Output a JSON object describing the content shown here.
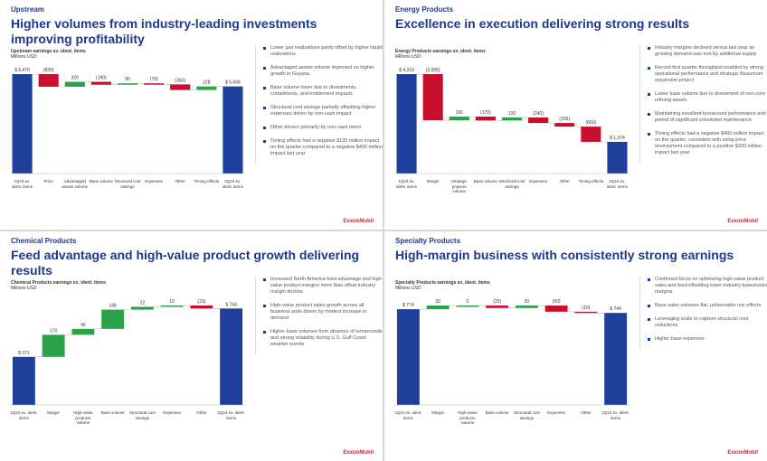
{
  "footer": "ExxonMobil",
  "chart_data": [
    {
      "type": "waterfall",
      "section": "Upstream",
      "title": "Higher volumes from industry-leading investments improving profitability",
      "chart_title": "Upstream earnings ex. ident. items",
      "unit": "Millions USD",
      "categories": [
        "1Q24 ex. ident. items",
        "Price",
        "Advantaged assets volume",
        "Base volume",
        "Structural cost savings",
        "Expenses",
        "Other",
        "Timing effects",
        "2Q24 ex. ident. items"
      ],
      "values": [
        6470,
        -820,
        320,
        -190,
        90,
        -70,
        -360,
        228,
        5668
      ],
      "value_labels": [
        "$ 6,470",
        "(820)",
        "320",
        "(190)",
        "90",
        "(70)",
        "(360)",
        "228",
        "$ 5,668"
      ],
      "bullets": [
        "Lower gas realizations partly offset by higher liquids realizations",
        "Advantaged assets volume improved on higher growth in Guyana",
        "Base volume lower due to divestments, curtailments, and entitlement impacts",
        "Structural cost savings partially offsetting higher expenses driven by non-cash impact",
        "Other drivers primarily by non-cash items",
        "Timing effects had a negative $120 million impact on the quarter compared to a negative $490 million impact last year"
      ]
    },
    {
      "type": "waterfall",
      "section": "Energy Products",
      "title": "Excellence in execution delivering strong results",
      "chart_title": "Energy Products earnings ex. ident. items",
      "unit": "Millions USD",
      "categories": [
        "1Q24 ex. ident. items",
        "Margin",
        "Strategic projects volume",
        "Base volume",
        "Structural cost savings",
        "Expenses",
        "Other",
        "Timing effects",
        "2Q24 ex. ident. items"
      ],
      "values": [
        4310,
        -2000,
        160,
        -170,
        130,
        -240,
        -156,
        -660,
        1374
      ],
      "value_labels": [
        "$ 4,310",
        "(2,000)",
        "160",
        "(170)",
        "130",
        "(240)",
        "(156)",
        "(660)",
        "$ 1,374"
      ],
      "bullets": [
        "Industry margins declined versus last year as growing demand was met by additional supply",
        "Record first quarter throughput enabled by strong operational performance and strategic Beaumont expansion project",
        "Lower base volume due to divestment of non-core refining assets",
        "Maintaining excellent turnaround performance and period of significant scheduled maintenance",
        "Timing effects had a negative $460 million impact on the quarter, consistent with rising price environment compared to a positive $200 million impact last year"
      ]
    },
    {
      "type": "waterfall",
      "section": "Chemical Products",
      "title": "Feed advantage and high-value product growth delivering results",
      "chart_title": "Chemical Products earnings ex. ident. items",
      "unit": "Millions USD",
      "categories": [
        "1Q24 ex. ident. items",
        "Margin",
        "High-value products volume",
        "Base volume",
        "Structural cost savings",
        "Expenses",
        "Other",
        "2Q24 ex. ident. items"
      ],
      "values": [
        371,
        170,
        46,
        148,
        22,
        10,
        -23,
        744
      ],
      "value_labels": [
        "$ 371",
        "170",
        "46",
        "148",
        "22",
        "10",
        "(23)",
        "$ 744"
      ],
      "bullets": [
        "Increased North America feed advantage and high-value product margins more than offset industry margin decline",
        "High-value product sales growth across all business units driven by modest increase in demand",
        "Higher base volumes from absence of turnarounds and strong reliability during U.S. Gulf Coast weather events"
      ]
    },
    {
      "type": "waterfall",
      "section": "Specialty Products",
      "title": "High-margin business with consistently strong earnings",
      "chart_title": "Specialty Products earnings ex. ident. items",
      "unit": "Millions USD",
      "categories": [
        "1Q24 ex. ident. items",
        "Margin",
        "High-value products volume",
        "Base volume",
        "Structural cost savings",
        "Expenses",
        "Other",
        "2Q24 ex. ident. items"
      ],
      "values": [
        774,
        30,
        0,
        -20,
        20,
        -50,
        -10,
        744
      ],
      "value_labels": [
        "$ 774",
        "30",
        "0",
        "(20)",
        "20",
        "(50)",
        "(10)",
        "$ 744"
      ],
      "bullets": [
        "Continued focus on optimizing high-value product sales and feed offsetting lower industry basestocks margins",
        "Base sales volumes flat, unfavorable mix effects",
        "Leveraging scale to capture structural cost reductions",
        "Higher base expenses"
      ]
    }
  ]
}
